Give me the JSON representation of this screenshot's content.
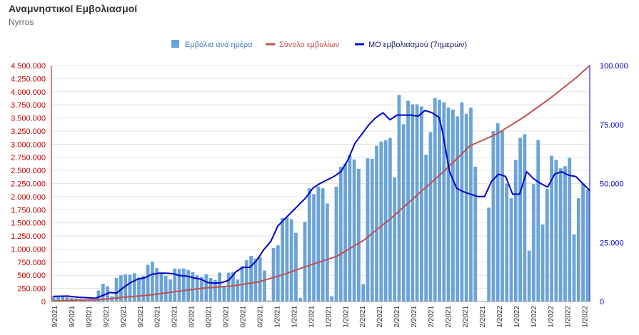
{
  "title": "Αναμνηστικοί Εμβολιασμοί",
  "subtitle": "Nyrros",
  "colors": {
    "bars": "#6aa3d9",
    "cumulative": "#c0504d",
    "average": "#0000cc",
    "left_axis": "#c00000",
    "right_axis": "#0000cc"
  },
  "chart_data": {
    "type": "bar",
    "legend_placement": "top-center",
    "grid": true,
    "series": [
      {
        "name": "Εμβόλια ανά ημέρα",
        "type": "bar",
        "axis": "left",
        "values": [
          110000,
          100000,
          90000,
          80000,
          70000,
          60000,
          50000,
          40000,
          30000,
          20000,
          210000,
          340000,
          290000,
          100000,
          450000,
          500000,
          520000,
          510000,
          540000,
          460000,
          490000,
          700000,
          760000,
          640000,
          540000,
          490000,
          420000,
          630000,
          620000,
          630000,
          600000,
          560000,
          500000,
          470000,
          520000,
          450000,
          410000,
          550000,
          300000,
          550000,
          560000,
          420000,
          670000,
          790000,
          870000,
          820000,
          850000,
          590000,
          20000,
          1020000,
          1070000,
          1590000,
          1610000,
          1570000,
          1310000,
          70000,
          1520000,
          2160000,
          2050000,
          2190000,
          2160000,
          1870000,
          100000,
          2190000,
          2570000,
          2630000,
          2800000,
          2710000,
          2530000,
          330000,
          2730000,
          2720000,
          2970000,
          3050000,
          3080000,
          3120000,
          2370000,
          3940000,
          3380000,
          3830000,
          3760000,
          3760000,
          3720000,
          2800000,
          3230000,
          3880000,
          3850000,
          3800000,
          3700000,
          3660000,
          3530000,
          3800000,
          3580000,
          3700000,
          2570000,
          0,
          0,
          1790000,
          3250000,
          3400000,
          3250000,
          2250000,
          1970000,
          2700000,
          3120000,
          3190000,
          970000,
          2240000,
          3080000,
          1470000,
          2150000,
          2780000,
          2700000,
          2540000,
          2580000,
          2740000,
          1280000,
          1970000,
          2250000,
          2130000
        ]
      },
      {
        "name": "Σύνολο εμβολίων",
        "type": "line",
        "axis": "right",
        "points": [
          [
            0,
            0.3
          ],
          [
            10,
            0.7
          ],
          [
            16,
            1.8
          ],
          [
            22,
            2.8
          ],
          [
            28,
            4.3
          ],
          [
            34,
            5.7
          ],
          [
            40,
            6.5
          ],
          [
            46,
            8.2
          ],
          [
            52,
            11.5
          ],
          [
            58,
            15.5
          ],
          [
            64,
            19.2
          ],
          [
            70,
            26
          ],
          [
            76,
            35
          ],
          [
            82,
            45
          ],
          [
            88,
            55
          ],
          [
            94,
            66
          ],
          [
            100,
            71
          ],
          [
            106,
            78
          ],
          [
            112,
            86
          ],
          [
            118,
            95
          ],
          [
            121,
            100
          ]
        ]
      },
      {
        "name": "ΜΟ εμβολιασμού (7ημερών)",
        "type": "line",
        "axis": "right",
        "points": [
          [
            0,
            2.2
          ],
          [
            4,
            2.3
          ],
          [
            7,
            1.8
          ],
          [
            12,
            1.4
          ],
          [
            14,
            2.5
          ],
          [
            16,
            3.8
          ],
          [
            18,
            3.6
          ],
          [
            20,
            6
          ],
          [
            22,
            8
          ],
          [
            24,
            9.5
          ],
          [
            26,
            10
          ],
          [
            28,
            11.5
          ],
          [
            30,
            12
          ],
          [
            32,
            12
          ],
          [
            34,
            11.8
          ],
          [
            36,
            11
          ],
          [
            38,
            10.8
          ],
          [
            40,
            10
          ],
          [
            42,
            9.5
          ],
          [
            44,
            8
          ],
          [
            46,
            7.8
          ],
          [
            48,
            8
          ],
          [
            50,
            9
          ],
          [
            52,
            12.5
          ],
          [
            54,
            14.5
          ],
          [
            56,
            14.5
          ],
          [
            58,
            17.5
          ],
          [
            60,
            22
          ],
          [
            62,
            25.5
          ],
          [
            64,
            32
          ],
          [
            66,
            35
          ],
          [
            68,
            38
          ],
          [
            70,
            41
          ],
          [
            72,
            44
          ],
          [
            74,
            48
          ],
          [
            76,
            50
          ],
          [
            78,
            51.5
          ],
          [
            80,
            53
          ],
          [
            82,
            55
          ],
          [
            84,
            60
          ],
          [
            86,
            67
          ],
          [
            88,
            71
          ],
          [
            90,
            75
          ],
          [
            92,
            78
          ],
          [
            94,
            80
          ],
          [
            96,
            77
          ],
          [
            98,
            79
          ],
          [
            100,
            79
          ],
          [
            102,
            79
          ],
          [
            104,
            78.5
          ],
          [
            106,
            81
          ],
          [
            108,
            80
          ],
          [
            110,
            78
          ],
          [
            111,
            72
          ],
          [
            113,
            55
          ],
          [
            115,
            48
          ],
          [
            117,
            46.5
          ],
          [
            119,
            45.5
          ],
          [
            121,
            44.5
          ],
          [
            123,
            44.5
          ],
          [
            125,
            51
          ],
          [
            127,
            54
          ],
          [
            129,
            53
          ],
          [
            131,
            45.5
          ],
          [
            133,
            45.5
          ],
          [
            135,
            55
          ],
          [
            137,
            52
          ],
          [
            139,
            50
          ],
          [
            141,
            48.5
          ],
          [
            143,
            54
          ],
          [
            145,
            55
          ],
          [
            147,
            53.5
          ],
          [
            149,
            53
          ],
          [
            151,
            50
          ],
          [
            153,
            47
          ]
        ]
      }
    ],
    "left_axis": {
      "min": 0,
      "max": 4500000,
      "ticks": [
        "0",
        "250.000",
        "500.000",
        "750.000",
        "1.000.000",
        "1.250.000",
        "1.500.000",
        "1.750.000",
        "2.000.000",
        "2.250.000",
        "2.500.000",
        "2.750.000",
        "3.000.000",
        "3.250.000",
        "3.500.000",
        "3.750.000",
        "4.000.000",
        "4.250.000",
        "4.500.000"
      ]
    },
    "right_axis": {
      "min": 0,
      "max": 100000,
      "ticks": [
        "0",
        "25.000",
        "50.000",
        "75.000",
        "100.000"
      ]
    },
    "x_tick_labels": [
      "9/2021",
      "9/2021",
      "9/2021",
      "9/2021",
      "9/2021",
      "9/2021",
      "0/2021",
      "0/2021",
      "0/2021",
      "0/2021",
      "0/2021",
      "0/2021",
      "0/2021",
      "1/2021",
      "1/2021",
      "1/2021",
      "1/2021",
      "1/2021",
      "2/2021",
      "2/2021",
      "2/2021",
      "2/2021",
      "2/2021",
      "2/2021",
      "2/2021",
      "2/2021",
      "1/2022",
      "1/2022",
      "1/2022",
      "1/2022",
      "1/2022",
      "1/2022"
    ]
  }
}
